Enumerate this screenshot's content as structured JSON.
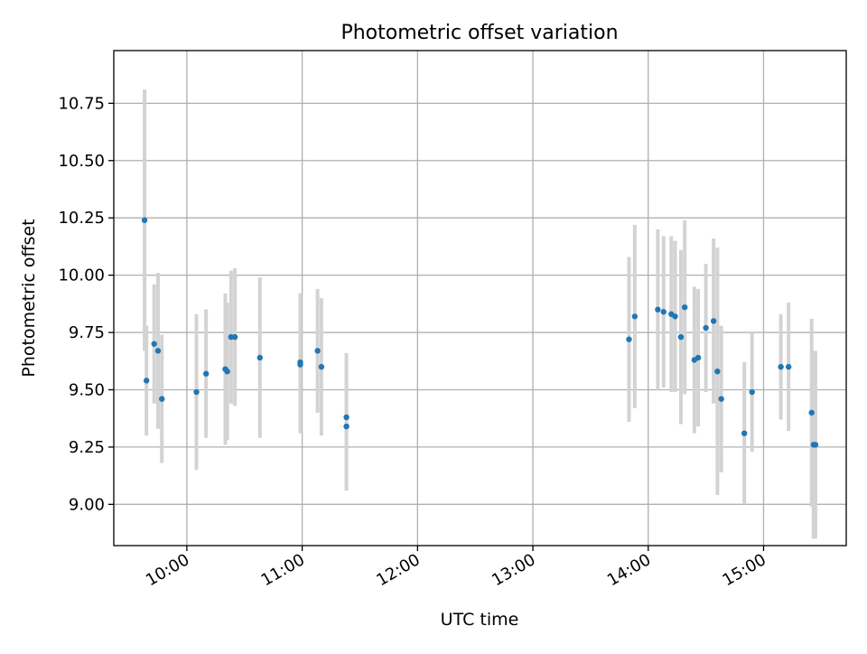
{
  "chart_data": {
    "type": "scatter",
    "title": "Photometric offset variation",
    "xlabel": "UTC time",
    "ylabel": "Photometric offset",
    "x_ticks": [
      "10:00",
      "11:00",
      "12:00",
      "13:00",
      "14:00",
      "15:00"
    ],
    "y_ticks": [
      "9.00",
      "9.25",
      "9.50",
      "9.75",
      "10.00",
      "10.25",
      "10.50",
      "10.75"
    ],
    "xlim": [
      "09:22",
      "15:43"
    ],
    "ylim": [
      8.82,
      10.98
    ],
    "grid": true,
    "point_color": "#1f77b4",
    "errorbar_color": "#d3d3d3",
    "points": [
      {
        "time": "09:38",
        "y": 10.24,
        "err": 0.57
      },
      {
        "time": "09:39",
        "y": 9.54,
        "err": 0.24
      },
      {
        "time": "09:43",
        "y": 9.7,
        "err": 0.26
      },
      {
        "time": "09:45",
        "y": 9.67,
        "err": 0.34
      },
      {
        "time": "09:47",
        "y": 9.46,
        "err": 0.28
      },
      {
        "time": "10:05",
        "y": 9.49,
        "err": 0.34
      },
      {
        "time": "10:10",
        "y": 9.57,
        "err": 0.28
      },
      {
        "time": "10:20",
        "y": 9.59,
        "err": 0.33
      },
      {
        "time": "10:21",
        "y": 9.58,
        "err": 0.3
      },
      {
        "time": "10:23",
        "y": 9.73,
        "err": 0.29
      },
      {
        "time": "10:25",
        "y": 9.73,
        "err": 0.3
      },
      {
        "time": "10:38",
        "y": 9.64,
        "err": 0.35
      },
      {
        "time": "10:59",
        "y": 9.61,
        "err": 0.3
      },
      {
        "time": "10:59",
        "y": 9.62,
        "err": 0.3
      },
      {
        "time": "11:08",
        "y": 9.67,
        "err": 0.27
      },
      {
        "time": "11:10",
        "y": 9.6,
        "err": 0.3
      },
      {
        "time": "11:23",
        "y": 9.34,
        "err": 0.28
      },
      {
        "time": "11:23",
        "y": 9.38,
        "err": 0.28
      },
      {
        "time": "13:50",
        "y": 9.72,
        "err": 0.36
      },
      {
        "time": "13:53",
        "y": 9.82,
        "err": 0.4
      },
      {
        "time": "14:05",
        "y": 9.85,
        "err": 0.35
      },
      {
        "time": "14:08",
        "y": 9.84,
        "err": 0.33
      },
      {
        "time": "14:12",
        "y": 9.83,
        "err": 0.34
      },
      {
        "time": "14:14",
        "y": 9.82,
        "err": 0.33
      },
      {
        "time": "14:17",
        "y": 9.73,
        "err": 0.38
      },
      {
        "time": "14:19",
        "y": 9.86,
        "err": 0.38
      },
      {
        "time": "14:24",
        "y": 9.63,
        "err": 0.32
      },
      {
        "time": "14:26",
        "y": 9.64,
        "err": 0.3
      },
      {
        "time": "14:30",
        "y": 9.77,
        "err": 0.28
      },
      {
        "time": "14:34",
        "y": 9.8,
        "err": 0.36
      },
      {
        "time": "14:36",
        "y": 9.58,
        "err": 0.54
      },
      {
        "time": "14:38",
        "y": 9.46,
        "err": 0.32
      },
      {
        "time": "14:50",
        "y": 9.31,
        "err": 0.31
      },
      {
        "time": "14:54",
        "y": 9.49,
        "err": 0.26
      },
      {
        "time": "15:09",
        "y": 9.6,
        "err": 0.23
      },
      {
        "time": "15:13",
        "y": 9.6,
        "err": 0.28
      },
      {
        "time": "15:25",
        "y": 9.4,
        "err": 0.41
      },
      {
        "time": "15:26",
        "y": 9.26,
        "err": 0.41
      },
      {
        "time": "15:27",
        "y": 9.26,
        "err": 0.41
      }
    ]
  }
}
